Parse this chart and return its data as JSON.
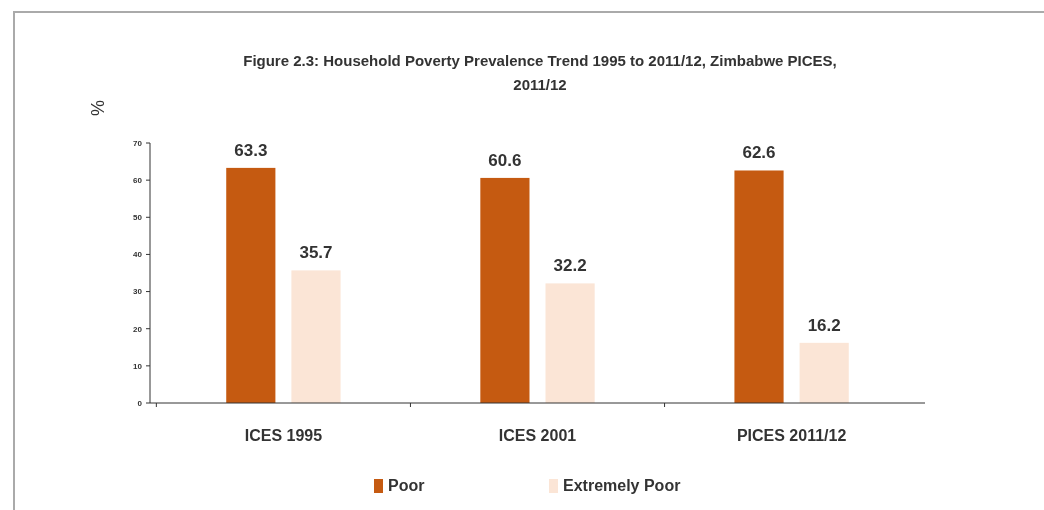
{
  "chart_data": {
    "type": "bar",
    "title": "Figure 2.3: Household Poverty Prevalence Trend 1995 to 2011/12, Zimbabwe PICES, 2011/12",
    "ylabel": "%",
    "categories": [
      "ICES 1995",
      "ICES 2001",
      "PICES 2011/12"
    ],
    "series": [
      {
        "name": "Poor",
        "color": "#c55a11",
        "values": [
          63.3,
          60.6,
          62.6
        ]
      },
      {
        "name": "Extremely Poor",
        "color": "#fbe5d6",
        "values": [
          35.7,
          32.2,
          16.2
        ]
      }
    ],
    "ylim": [
      0,
      70
    ],
    "yticks": [
      0,
      10,
      20,
      30,
      40,
      50,
      60,
      70
    ],
    "data_labels": true,
    "legend": "bottom",
    "grid": false
  }
}
